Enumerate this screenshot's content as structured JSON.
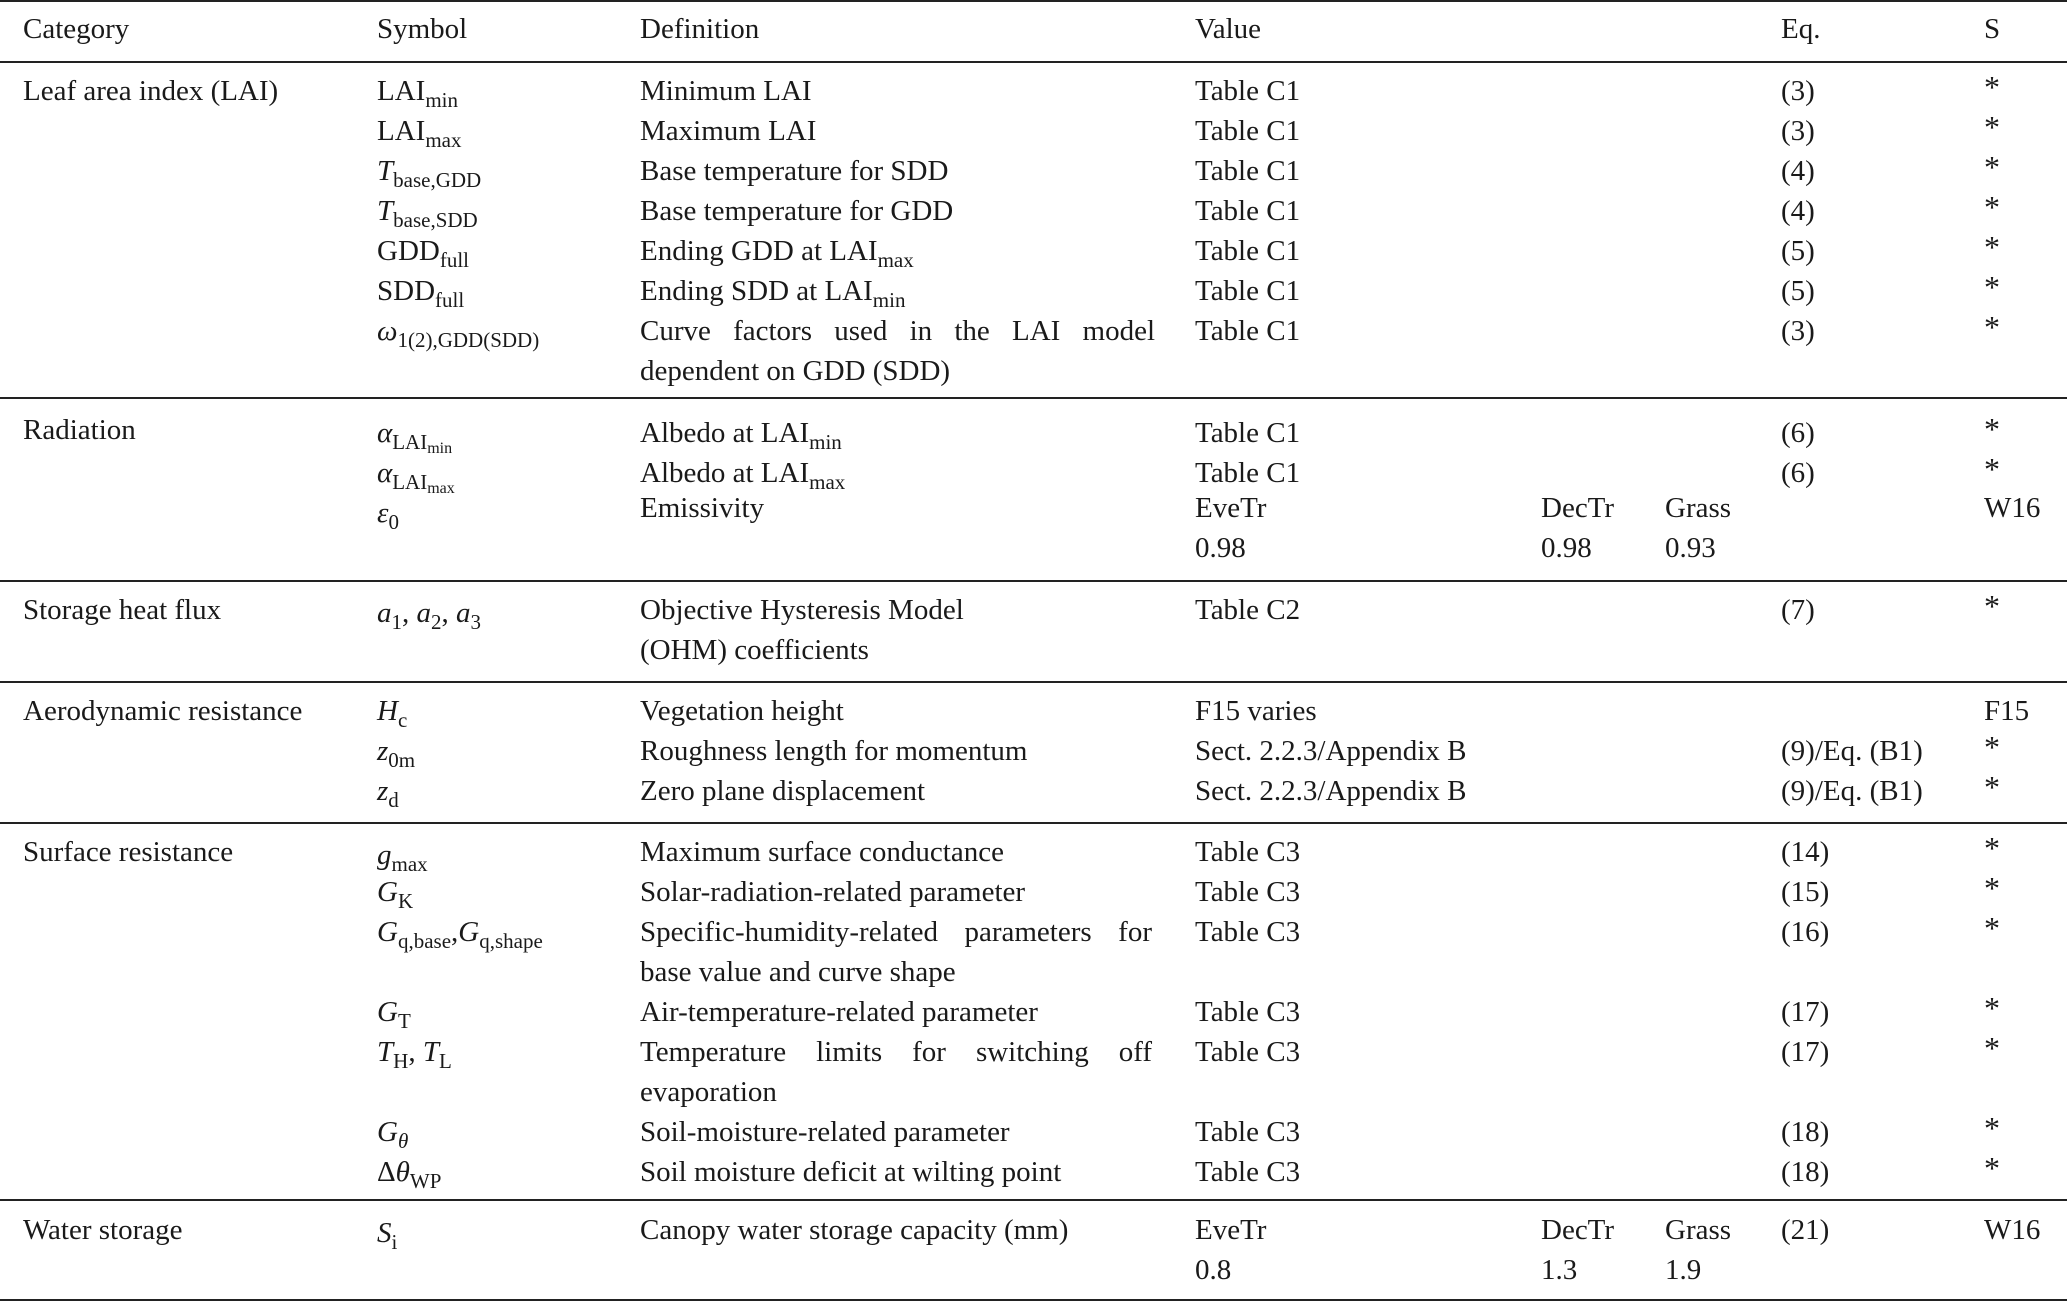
{
  "headers": {
    "category": "Category",
    "symbol": "Symbol",
    "definition": "Definition",
    "value": "Value",
    "eq": "Eq.",
    "s": "S"
  },
  "sections": [
    {
      "category": "Leaf area index (LAI)",
      "rows": [
        {
          "definition": "Minimum LAI",
          "value": "Table C1",
          "eq": "(3)",
          "s": "*"
        },
        {
          "definition": "Maximum LAI",
          "value": "Table C1",
          "eq": "(3)",
          "s": "*"
        },
        {
          "definition": "Base temperature for SDD",
          "value": "Table C1",
          "eq": "(4)",
          "s": "*"
        },
        {
          "definition": "Base temperature for GDD",
          "value": "Table C1",
          "eq": "(4)",
          "s": "*"
        },
        {
          "definition": "Ending GDD at LAI",
          "value": "Table C1",
          "eq": "(5)",
          "s": "*"
        },
        {
          "definition": "Ending SDD at LAI",
          "value": "Table C1",
          "eq": "(5)",
          "s": "*"
        },
        {
          "definition": "Curve factors used in the LAI model dependent on GDD (SDD)",
          "value": "Table C1",
          "eq": "(3)",
          "s": "*"
        }
      ]
    },
    {
      "category": "Radiation",
      "rows": [
        {
          "definition": "Albedo at LAI",
          "value": "Table C1",
          "eq": "(6)",
          "s": "*"
        },
        {
          "definition": "Albedo at LAI",
          "value": "Table C1",
          "eq": "(6)",
          "s": "*"
        },
        {
          "definition": "Emissivity",
          "value_eve_label": "EveTr",
          "value_eve": "0.98",
          "value_dec_label": "DecTr",
          "value_dec": "0.98",
          "value_grass_label": "Grass",
          "value_grass": "0.93",
          "s": "W16"
        }
      ]
    },
    {
      "category": "Storage heat flux",
      "rows": [
        {
          "definition_1": "Objective Hysteresis Model",
          "definition_2": "(OHM) coefficients",
          "value": "Table C2",
          "eq": "(7)",
          "s": "*"
        }
      ]
    },
    {
      "category": "Aerodynamic resistance",
      "rows": [
        {
          "definition": "Vegetation height",
          "value": "F15 varies",
          "s": "F15"
        },
        {
          "definition": "Roughness length for momentum",
          "value": "Sect. 2.2.3/Appendix B",
          "eq": "(9)/Eq. (B1)",
          "s": "*"
        },
        {
          "definition": "Zero plane displacement",
          "value": "Sect. 2.2.3/Appendix B",
          "eq": "(9)/Eq. (B1)",
          "s": "*"
        }
      ]
    },
    {
      "category": "Surface resistance",
      "rows": [
        {
          "definition": "Maximum surface conductance",
          "value": "Table C3",
          "eq": "(14)",
          "s": "*"
        },
        {
          "definition": "Solar-radiation-related parameter",
          "value": "Table C3",
          "eq": "(15)",
          "s": "*"
        },
        {
          "definition": "Specific-humidity-related parameters for base value and curve shape",
          "value": "Table C3",
          "eq": "(16)",
          "s": "*"
        },
        {
          "definition": "Air-temperature-related parameter",
          "value": "Table C3",
          "eq": "(17)",
          "s": "*"
        },
        {
          "definition": "Temperature limits for switching off evaporation",
          "value": "Table C3",
          "eq": "(17)",
          "s": "*"
        },
        {
          "definition": "Soil-moisture-related parameter",
          "value": "Table C3",
          "eq": "(18)",
          "s": "*"
        },
        {
          "definition": "Soil moisture deficit at wilting point",
          "value": "Table C3",
          "eq": "(18)",
          "s": "*"
        }
      ]
    },
    {
      "category": "Water storage",
      "rows": [
        {
          "definition": "Canopy water storage capacity (mm)",
          "value_eve_label": "EveTr",
          "value_eve": "0.8",
          "value_dec_label": "DecTr",
          "value_dec": "1.3",
          "value_grass_label": "Grass",
          "value_grass": "1.9",
          "eq": "(21)",
          "s": "W16"
        }
      ]
    }
  ]
}
